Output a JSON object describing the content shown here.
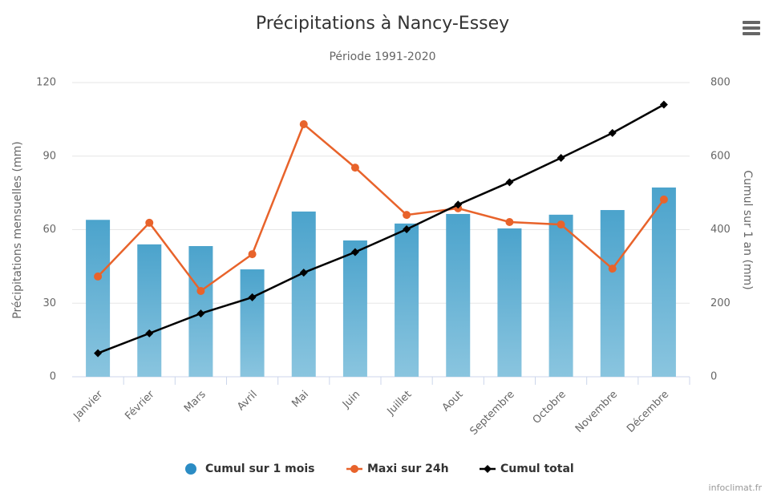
{
  "chart_data": {
    "type": "bar_line_combo",
    "title": "Précipitations à Nancy-Essey",
    "subtitle": "Période 1991-2020",
    "y_label": "Précipitations mensuelles (mm)",
    "y2_label": "Cumul sur 1 an (mm)",
    "credit": "infoclimat.fr",
    "categories": [
      "Janvier",
      "Février",
      "Mars",
      "Avril",
      "Mai",
      "Juin",
      "Juillet",
      "Aout",
      "Septembre",
      "Octobre",
      "Novembre",
      "Décembre"
    ],
    "ylim": [
      0,
      120
    ],
    "yticks": [
      0,
      30,
      60,
      90,
      120
    ],
    "y2lim": [
      0,
      800
    ],
    "y2ticks": [
      0,
      200,
      400,
      600,
      800
    ],
    "grid": true,
    "series": [
      {
        "name": "Cumul sur 1 mois",
        "type": "bar",
        "color": "#4ba3cc",
        "values": [
          64,
          54,
          53.3,
          43.8,
          67.4,
          55.6,
          62.5,
          66.4,
          60.5,
          66.1,
          68,
          77.2
        ]
      },
      {
        "name": "Maxi sur 24h",
        "type": "line",
        "color": "#e8632b",
        "values": [
          40.9,
          62.8,
          35,
          50,
          103,
          85.3,
          66,
          68.7,
          63.1,
          62.1,
          44.1,
          72.3
        ]
      },
      {
        "name": "Cumul total",
        "type": "line",
        "axis": "y2",
        "color": "#000000",
        "values": [
          64,
          118,
          172,
          216,
          283,
          339,
          401,
          468,
          529,
          595,
          663,
          740
        ]
      }
    ]
  }
}
